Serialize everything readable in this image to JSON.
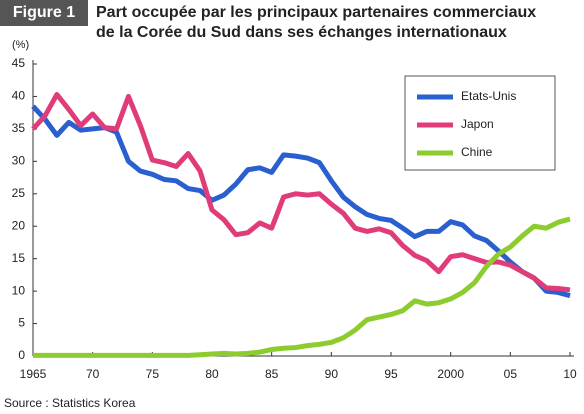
{
  "figure_label": "Figure 1",
  "chart_data": {
    "type": "line",
    "title": [
      "Part occupée par les principaux partenaires commerciaux",
      "de la Corée du Sud dans ses échanges internationaux"
    ],
    "y_label": "(%)",
    "source": "Source : Statistics Korea",
    "x": [
      1965,
      1966,
      1967,
      1968,
      1969,
      1970,
      1971,
      1972,
      1973,
      1974,
      1975,
      1976,
      1977,
      1978,
      1979,
      1980,
      1981,
      1982,
      1983,
      1984,
      1985,
      1986,
      1987,
      1988,
      1989,
      1990,
      1991,
      1992,
      1993,
      1994,
      1995,
      1996,
      1997,
      1998,
      1999,
      2000,
      2001,
      2002,
      2003,
      2004,
      2005,
      2006,
      2007,
      2008,
      2009,
      2010
    ],
    "series": [
      {
        "name": "Etats-Unis",
        "color": "#2a5fd0",
        "values": [
          38.5,
          36.5,
          34,
          36,
          34.8,
          35,
          35.2,
          34.5,
          30,
          28.5,
          28,
          27.2,
          27,
          25.8,
          25.5,
          24,
          24.8,
          26.5,
          28.7,
          29,
          28.3,
          31,
          30.8,
          30.5,
          29.8,
          27,
          24.5,
          23,
          21.8,
          21.2,
          20.9,
          19.7,
          18.4,
          19.2,
          19.2,
          20.7,
          20.2,
          18.5,
          17.8,
          16.2,
          14.5,
          13,
          12,
          10,
          9.8,
          9.3
        ]
      },
      {
        "name": "Japon",
        "color": "#e03c7a",
        "values": [
          35,
          37,
          40.3,
          38,
          35.5,
          37.3,
          35.2,
          35,
          40,
          35.5,
          30.2,
          29.8,
          29.2,
          31.2,
          28.5,
          22.5,
          21,
          18.7,
          19,
          20.5,
          19.7,
          24.5,
          25,
          24.8,
          25,
          23.4,
          22,
          19.7,
          19.2,
          19.6,
          19,
          17,
          15.5,
          14.7,
          13,
          15.3,
          15.6,
          15,
          14.4,
          14.5,
          14,
          13,
          12,
          10.5,
          10.4,
          10.2
        ]
      },
      {
        "name": "Chine",
        "color": "#8ccc2f",
        "values": [
          0.1,
          0.1,
          0.1,
          0.1,
          0.1,
          0.1,
          0.1,
          0.1,
          0.1,
          0.1,
          0.1,
          0.1,
          0.1,
          0.1,
          0.2,
          0.3,
          0.4,
          0.3,
          0.4,
          0.6,
          1,
          1.2,
          1.3,
          1.6,
          1.8,
          2.1,
          2.8,
          4,
          5.6,
          6,
          6.4,
          7,
          8.5,
          8,
          8.2,
          8.8,
          9.8,
          11.3,
          13.8,
          15.7,
          16.8,
          18.5,
          20,
          19.7,
          20.6,
          21.1
        ]
      }
    ],
    "xlim": [
      1965,
      2010
    ],
    "xticks": [
      1965,
      {
        "value": 1970,
        "label": "70"
      },
      {
        "value": 1975,
        "label": "75"
      },
      {
        "value": 1980,
        "label": "80"
      },
      {
        "value": 1985,
        "label": "85"
      },
      {
        "value": 1990,
        "label": "90"
      },
      {
        "value": 1995,
        "label": "95"
      },
      2000,
      {
        "value": 2005,
        "label": "05"
      },
      {
        "value": 2010,
        "label": "10"
      }
    ],
    "ylim": [
      0,
      45
    ],
    "yticks": [
      0,
      5,
      10,
      15,
      20,
      25,
      30,
      35,
      40,
      45
    ],
    "grid": false,
    "legend": "upper right"
  }
}
